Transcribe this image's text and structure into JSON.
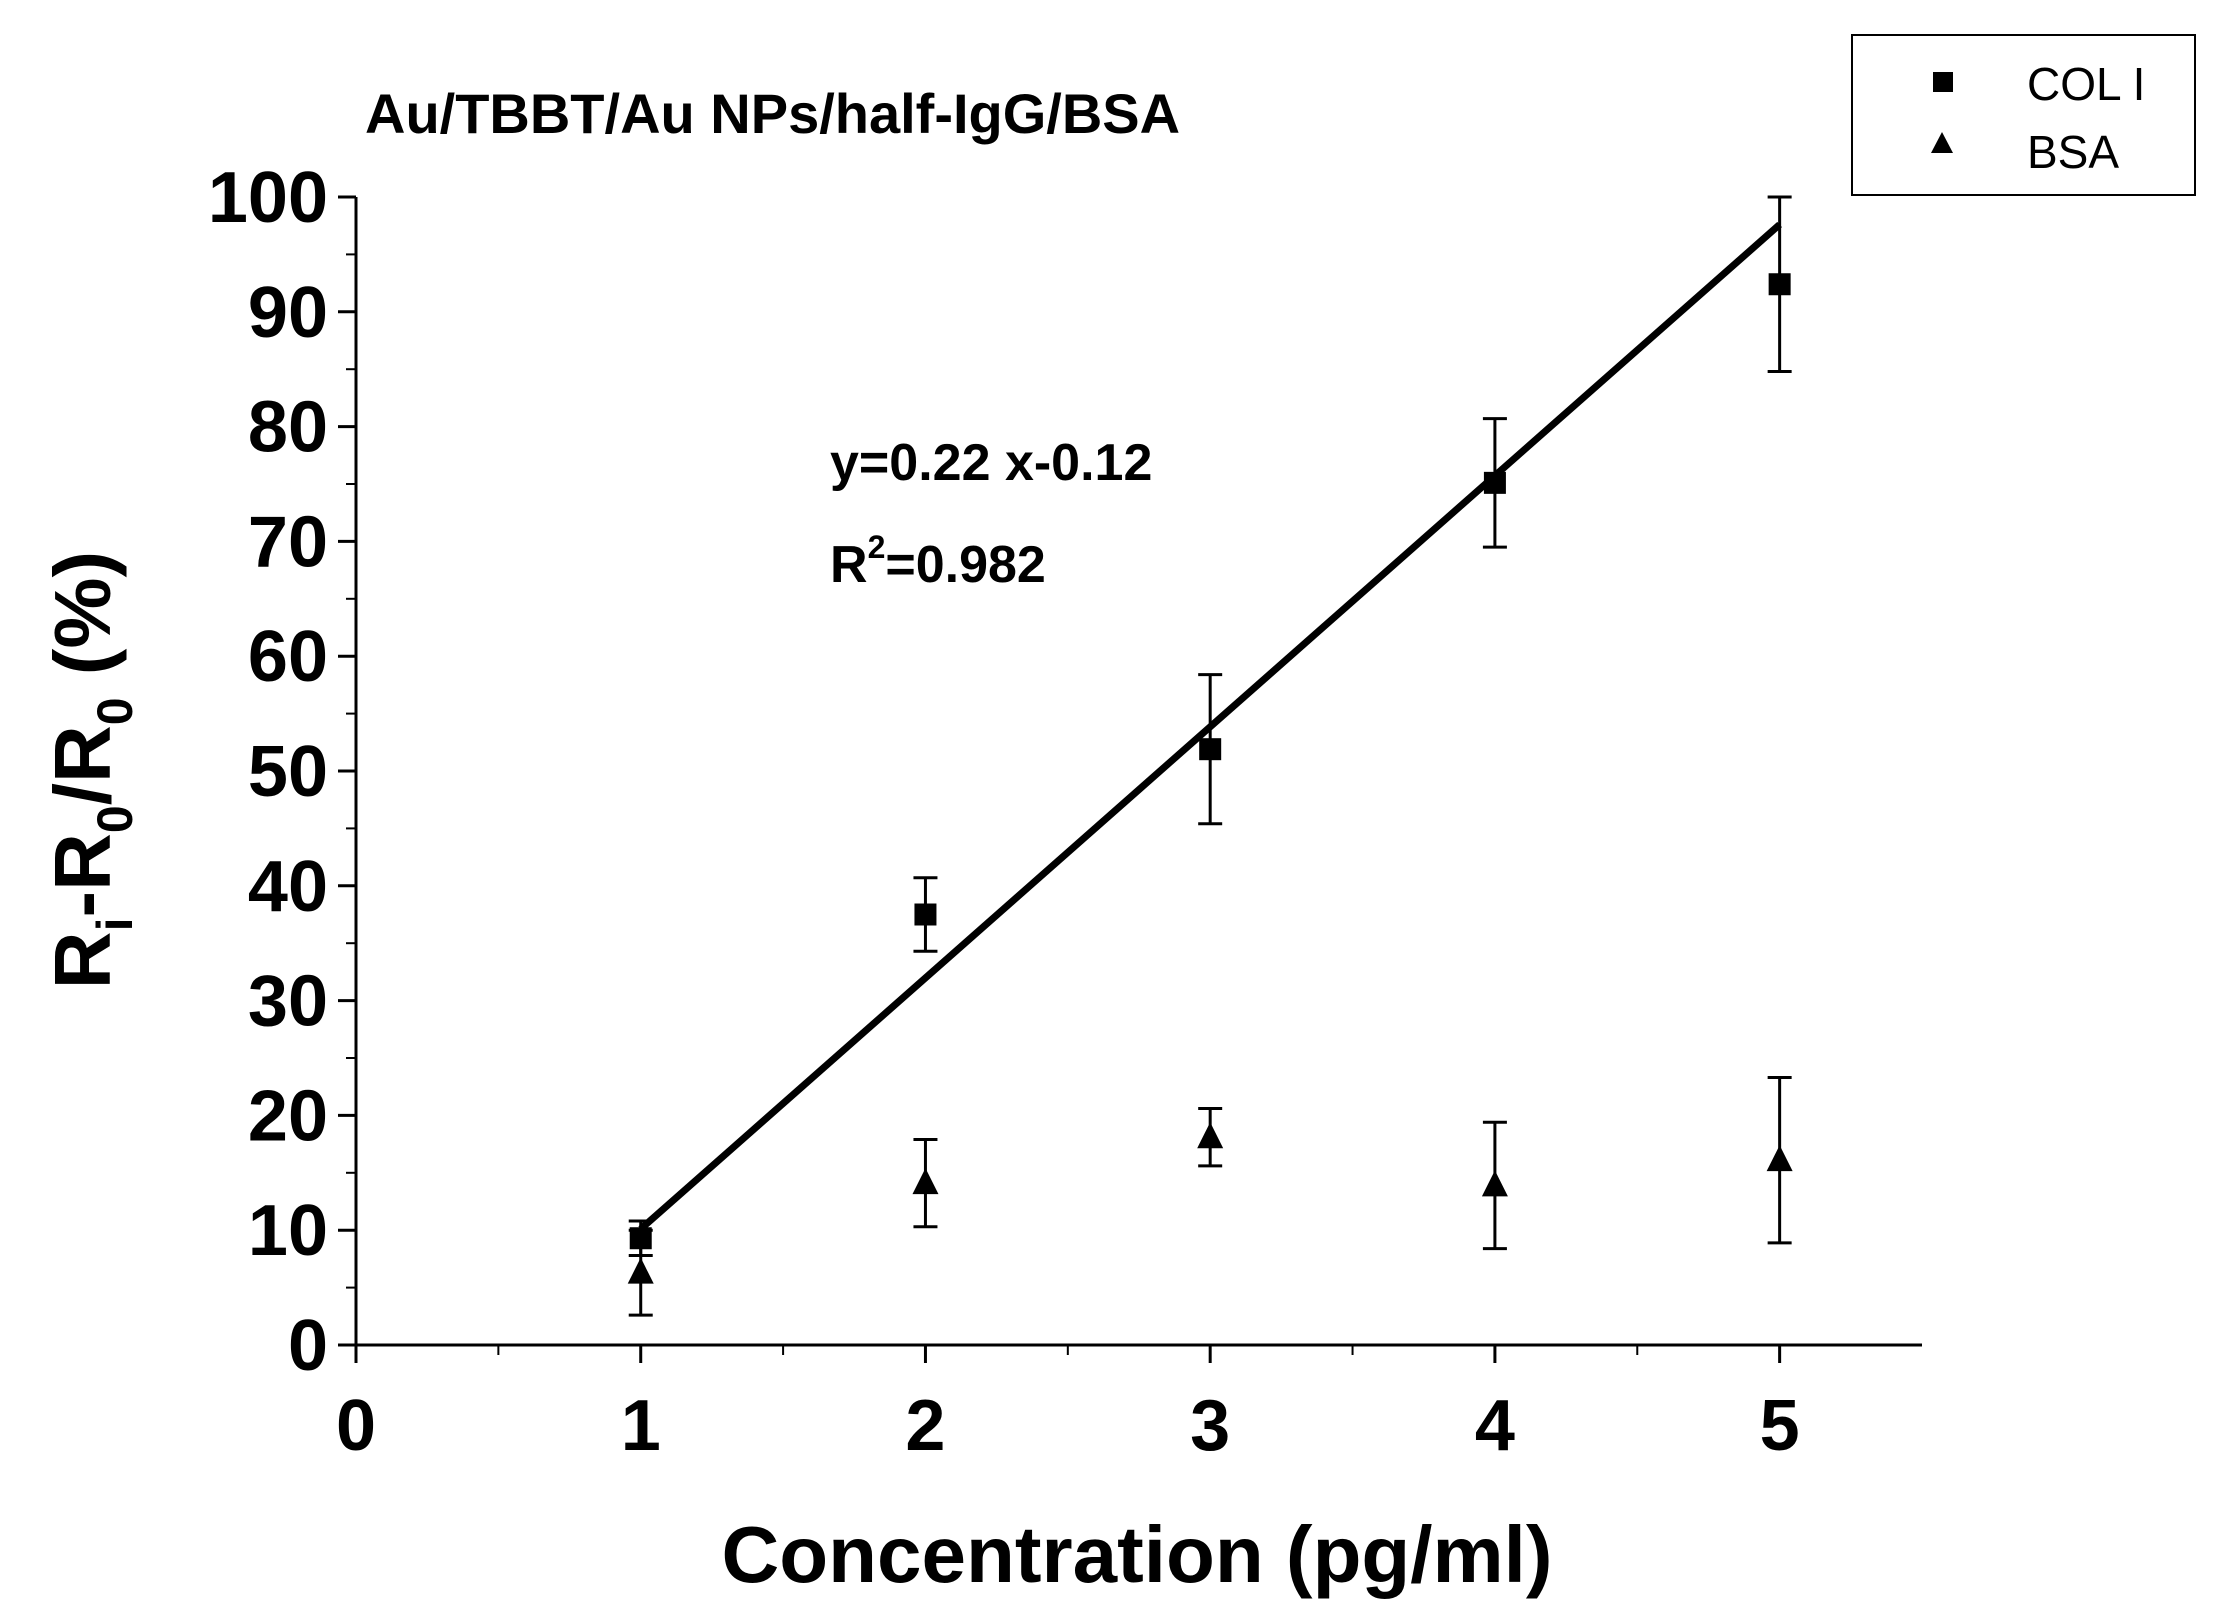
{
  "chart_data": {
    "type": "scatter",
    "title": "Au/TBBT/Au NPs/half-IgG/BSA",
    "xlabel": "Concentration (pg/ml)",
    "ylabel": {
      "parts": [
        {
          "text": "R",
          "sub": false
        },
        {
          "text": "i",
          "sub": true
        },
        {
          "text": "-R",
          "sub": false
        },
        {
          "text": "0",
          "sub": true
        },
        {
          "text": "/R",
          "sub": false
        },
        {
          "text": "0",
          "sub": true
        },
        {
          "text": " (%)",
          "sub": false
        }
      ]
    },
    "xlim": [
      0,
      5.5
    ],
    "ylim": [
      0,
      100
    ],
    "x_ticks": [
      "0",
      "1",
      "2",
      "3",
      "4",
      "5"
    ],
    "y_ticks": [
      "0",
      "10",
      "20",
      "30",
      "40",
      "50",
      "60",
      "70",
      "80",
      "90",
      "100"
    ],
    "grid": false,
    "legend_position": "top-right",
    "series": [
      {
        "name": "COL I",
        "marker": "square",
        "color": "#000000",
        "points": [
          {
            "x": 1,
            "y": 9.3,
            "err": 1.5
          },
          {
            "x": 2,
            "y": 37.5,
            "err": 3.2
          },
          {
            "x": 3,
            "y": 51.9,
            "err": 6.5
          },
          {
            "x": 4,
            "y": 75.1,
            "err": 5.6
          },
          {
            "x": 5,
            "y": 92.4,
            "err": 7.6
          }
        ]
      },
      {
        "name": "BSA",
        "marker": "triangle",
        "color": "#000000",
        "points": [
          {
            "x": 1,
            "y": 6.3,
            "err": 3.7
          },
          {
            "x": 2,
            "y": 14.1,
            "err": 3.8
          },
          {
            "x": 3,
            "y": 18.1,
            "err": 2.5
          },
          {
            "x": 4,
            "y": 13.9,
            "err": 5.5
          },
          {
            "x": 5,
            "y": 16.1,
            "err": 7.2
          }
        ]
      }
    ],
    "fit_line": {
      "series": "COL I",
      "x": [
        1,
        5
      ],
      "y": [
        10.1,
        97.6
      ]
    },
    "annotations": {
      "equation": "y=0.22 x-0.12",
      "r2_prefix": "R",
      "r2_sup": "2",
      "r2_value": "=0.982"
    }
  }
}
